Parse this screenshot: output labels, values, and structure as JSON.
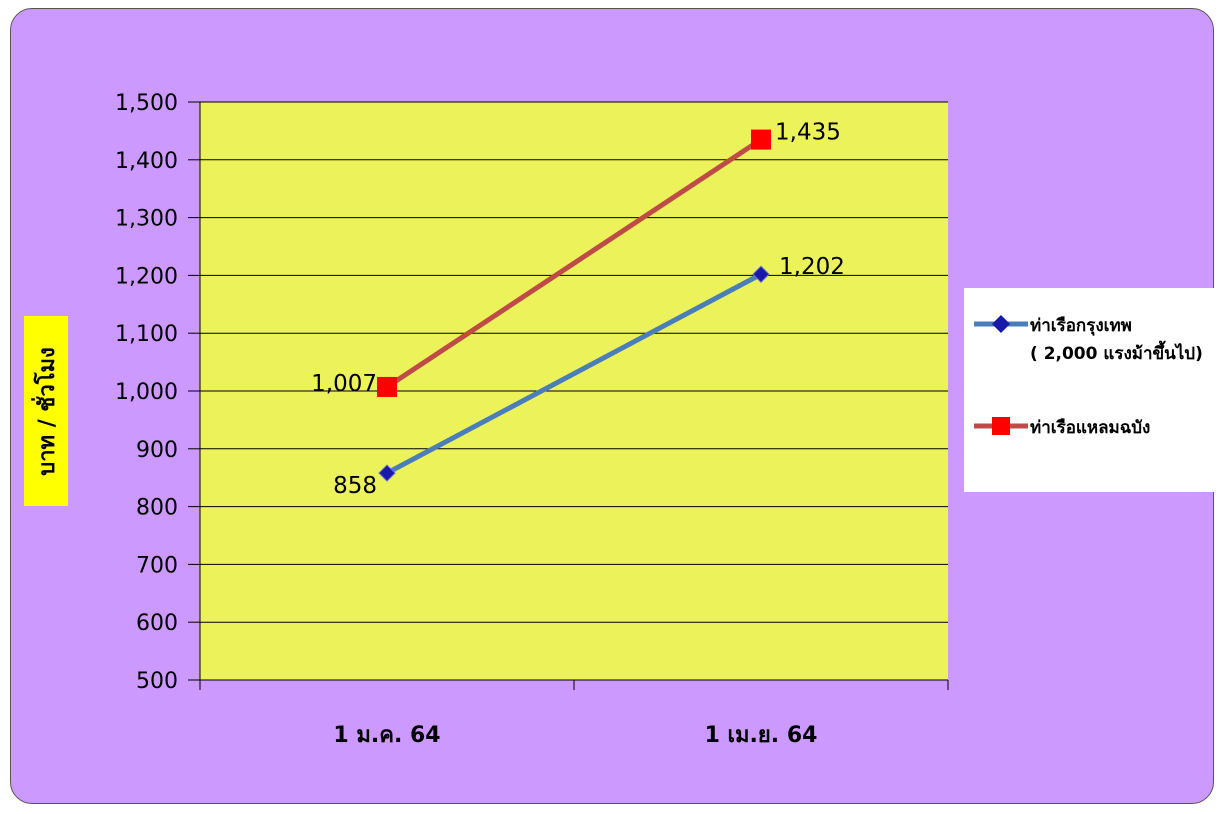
{
  "colors": {
    "frame_bg": "#cc99ff",
    "plot_bg": "#ecf25a",
    "ylabel_bg": "#ffff00",
    "series_1": "#4a7ebb",
    "series_1_marker": "#1a1aa8",
    "series_2": "#be4b48",
    "series_2_marker": "#ff0000"
  },
  "chart_data": {
    "type": "line",
    "title": "",
    "xlabel": "",
    "ylabel": "บาท / ชั่วโมง",
    "categories": [
      "1 ม.ค. 64",
      "1 เม.ย. 64"
    ],
    "ylim": [
      500,
      1500
    ],
    "yticks": [
      500,
      600,
      700,
      800,
      900,
      1000,
      1100,
      1200,
      1300,
      1400,
      1500
    ],
    "ytick_labels": [
      "500",
      "600",
      "700",
      "800",
      "900",
      "1,000",
      "1,100",
      "1,200",
      "1,300",
      "1,400",
      "1,500"
    ],
    "grid": true,
    "legend_position": "right",
    "series": [
      {
        "name": "ท่าเรือกรุงเทพ\n( 2,000 แรงม้าขึ้นไป)",
        "marker": "diamond",
        "values": [
          858,
          1202
        ],
        "labels": [
          "858",
          "1,202"
        ]
      },
      {
        "name": "ท่าเรือแหลมฉบัง",
        "marker": "square",
        "values": [
          1007,
          1435
        ],
        "labels": [
          "1,007",
          "1,435"
        ]
      }
    ]
  }
}
